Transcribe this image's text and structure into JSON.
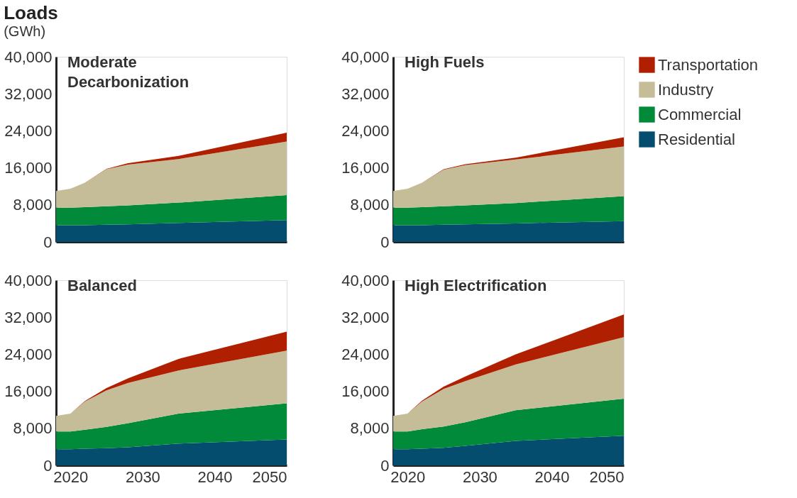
{
  "chart_data": [
    {
      "type": "area",
      "title": "Moderate Decarbonization",
      "annotations": [
        "Loads",
        "(GWh)"
      ],
      "stacked": true,
      "legend": "right",
      "grid": false,
      "tick_labels": "y",
      "x": [
        2018,
        2020,
        2022,
        2025,
        2028,
        2035,
        2050
      ],
      "xlim": [
        2018,
        2050
      ],
      "xticks": [
        2020,
        2030,
        2040,
        2050
      ],
      "ylim": [
        0,
        40000
      ],
      "yticks": [
        0,
        {
          "value": 8000,
          "label": "8,000"
        },
        {
          "value": 16000,
          "label": "16,000"
        },
        {
          "value": 24000,
          "label": "24,000"
        },
        {
          "value": 32000,
          "label": "32,000"
        },
        {
          "value": 40000,
          "label": "40,000"
        }
      ],
      "series": [
        {
          "name": "Residential",
          "color": "#054d6e",
          "values": [
            3600,
            3600,
            3600,
            3700,
            3800,
            4100,
            4700
          ]
        },
        {
          "name": "Commercial",
          "color": "#008a3a",
          "values": [
            3800,
            3800,
            3900,
            4000,
            4100,
            4400,
            5400
          ]
        },
        {
          "name": "Industry",
          "color": "#c5bd98",
          "values": [
            3600,
            4100,
            5300,
            8000,
            8800,
            9400,
            11600
          ]
        },
        {
          "name": "Transportation",
          "color": "#b02000",
          "values": [
            0,
            0,
            0,
            100,
            300,
            700,
            1900
          ]
        }
      ]
    },
    {
      "type": "area",
      "title": "High Fuels",
      "stacked": true,
      "grid": false,
      "tick_labels": "y",
      "x": [
        2018,
        2020,
        2022,
        2025,
        2028,
        2035,
        2050
      ],
      "xlim": [
        2018,
        2050
      ],
      "xticks": [
        2020,
        2030,
        2040,
        2050
      ],
      "ylim": [
        0,
        40000
      ],
      "yticks": [
        0,
        {
          "value": 8000,
          "label": "8,000"
        },
        {
          "value": 16000,
          "label": "16,000"
        },
        {
          "value": 24000,
          "label": "24,000"
        },
        {
          "value": 32000,
          "label": "32,000"
        },
        {
          "value": 40000,
          "label": "40,000"
        }
      ],
      "series": [
        {
          "name": "Residential",
          "color": "#054d6e",
          "values": [
            3600,
            3600,
            3600,
            3700,
            3800,
            4000,
            4500
          ]
        },
        {
          "name": "Commercial",
          "color": "#008a3a",
          "values": [
            3800,
            3800,
            3900,
            4000,
            4100,
            4400,
            5400
          ]
        },
        {
          "name": "Industry",
          "color": "#c5bd98",
          "values": [
            3600,
            4100,
            5300,
            7900,
            8700,
            9400,
            10700
          ]
        },
        {
          "name": "Transportation",
          "color": "#b02000",
          "values": [
            0,
            0,
            0,
            100,
            200,
            400,
            2000
          ]
        }
      ]
    },
    {
      "type": "area",
      "title": "Balanced",
      "stacked": true,
      "grid": false,
      "x": [
        2018,
        2020,
        2022,
        2025,
        2028,
        2035,
        2050
      ],
      "xlim": [
        2018,
        2050
      ],
      "xticks": [
        2020,
        2030,
        2040,
        2050
      ],
      "ylim": [
        0,
        40000
      ],
      "yticks": [
        0,
        {
          "value": 8000,
          "label": "8,000"
        },
        {
          "value": 16000,
          "label": "16,000"
        },
        {
          "value": 24000,
          "label": "24,000"
        },
        {
          "value": 32000,
          "label": "32,000"
        },
        {
          "value": 40000,
          "label": "40,000"
        }
      ],
      "series": [
        {
          "name": "Residential",
          "color": "#054d6e",
          "values": [
            3500,
            3500,
            3600,
            3700,
            3900,
            4700,
            5600
          ]
        },
        {
          "name": "Commercial",
          "color": "#008a3a",
          "values": [
            3800,
            3800,
            4100,
            4600,
            5200,
            6500,
            7800
          ]
        },
        {
          "name": "Industry",
          "color": "#c5bd98",
          "values": [
            3400,
            3900,
            6100,
            7900,
            8700,
            9300,
            11400
          ]
        },
        {
          "name": "Transportation",
          "color": "#b02000",
          "values": [
            0,
            0,
            100,
            500,
            1000,
            2500,
            4100
          ]
        }
      ]
    },
    {
      "type": "area",
      "title": "High Electrification",
      "stacked": true,
      "grid": false,
      "x": [
        2018,
        2020,
        2022,
        2025,
        2028,
        2035,
        2050
      ],
      "xlim": [
        2018,
        2050
      ],
      "xticks": [
        2020,
        2030,
        2040,
        2050
      ],
      "ylim": [
        0,
        40000
      ],
      "yticks": [
        0,
        {
          "value": 8000,
          "label": "8,000"
        },
        {
          "value": 16000,
          "label": "16,000"
        },
        {
          "value": 24000,
          "label": "24,000"
        },
        {
          "value": 32000,
          "label": "32,000"
        },
        {
          "value": 40000,
          "label": "40,000"
        }
      ],
      "series": [
        {
          "name": "Residential",
          "color": "#054d6e",
          "values": [
            3500,
            3500,
            3600,
            3800,
            4200,
            5300,
            6400
          ]
        },
        {
          "name": "Commercial",
          "color": "#008a3a",
          "values": [
            3800,
            3800,
            4200,
            4600,
            5100,
            6600,
            8000
          ]
        },
        {
          "name": "Industry",
          "color": "#c5bd98",
          "values": [
            3400,
            3900,
            6000,
            8100,
            8900,
            9900,
            13300
          ]
        },
        {
          "name": "Transportation",
          "color": "#b02000",
          "values": [
            0,
            0,
            200,
            500,
            1000,
            2200,
            4900
          ]
        }
      ]
    }
  ]
}
